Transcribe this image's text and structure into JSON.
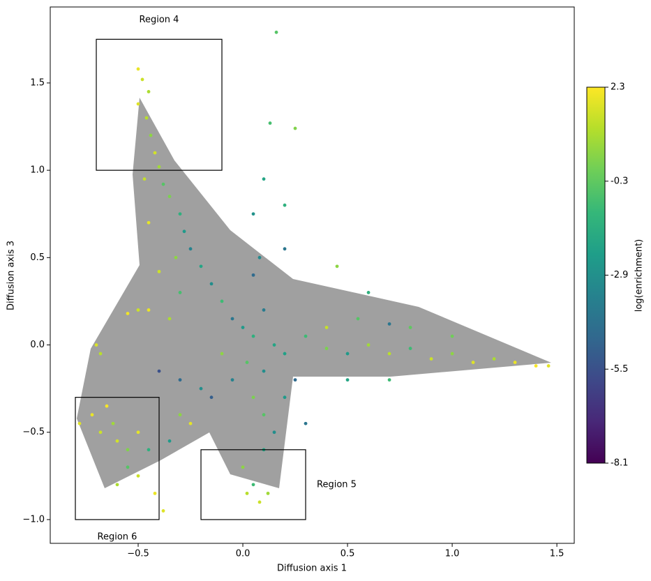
{
  "chart_data": {
    "type": "scatter",
    "x_label": "Diffusion axis 1",
    "y_label": "Diffusion axis 3",
    "xlim": [
      -0.92,
      1.583
    ],
    "ylim": [
      -1.136,
      1.935
    ],
    "xticks": [
      {
        "value": -0.5,
        "label": "−0.5"
      },
      {
        "value": 0,
        "label": "0.0"
      },
      0.5,
      {
        "value": 1,
        "label": "1.0"
      },
      1.5
    ],
    "yticks": [
      {
        "value": -1,
        "label": "−1.0"
      },
      {
        "value": -0.5,
        "label": "−0.5"
      },
      {
        "value": 0,
        "label": "0.0"
      },
      0.5,
      {
        "value": 1,
        "label": "1.0"
      },
      1.5
    ],
    "colormap": "viridis",
    "colorbar": {
      "label": "log(enrichment)",
      "lim": [
        -8.1,
        2.3
      ],
      "ticks": [
        2.3,
        -0.3,
        -2.9,
        -5.5,
        -8.1
      ]
    },
    "regions": [
      {
        "label": "Region 4",
        "x": [
          -0.7,
          -0.1
        ],
        "y": [
          1.0,
          1.75
        ],
        "label_position": "top"
      },
      {
        "label": "Region 5",
        "x": [
          -0.2,
          0.3
        ],
        "y": [
          -1.0,
          -0.6
        ],
        "label_position": "right"
      },
      {
        "label": "Region 6",
        "x": [
          -0.8,
          -0.4
        ],
        "y": [
          -1.0,
          -0.3
        ],
        "label_position": "bottom"
      }
    ],
    "x": [
      -0.5,
      -0.48,
      -0.45,
      -0.5,
      -0.46,
      -0.44,
      -0.42,
      -0.4,
      -0.47,
      -0.38,
      -0.35,
      -0.3,
      -0.28,
      -0.45,
      -0.25,
      -0.2,
      -0.32,
      -0.4,
      -0.15,
      -0.1,
      -0.3,
      -0.45,
      -0.35,
      -0.05,
      0,
      0.05,
      0.1,
      0.15,
      -0.1,
      0.02,
      0.1,
      0.2,
      0.05,
      0.08,
      0.2,
      0.05,
      0.1,
      0.16,
      0.13,
      0.25,
      0.2,
      0.3,
      0.4,
      0.5,
      0.6,
      0.7,
      0.8,
      0.9,
      1.0,
      1.1,
      1.2,
      1.3,
      1.4,
      1.46,
      0.55,
      0.7,
      0.45,
      0.6,
      0.8,
      0.5,
      0.7,
      1.0,
      0.4,
      -0.78,
      -0.72,
      -0.68,
      -0.65,
      -0.62,
      -0.6,
      -0.55,
      -0.5,
      -0.7,
      -0.68,
      -0.55,
      -0.6,
      -0.5,
      -0.42,
      -0.38,
      -0.45,
      -0.35,
      -0.3,
      -0.25,
      -0.3,
      -0.2,
      -0.15,
      -0.4,
      -0.5,
      -0.55,
      0,
      0.02,
      0.05,
      0.08,
      0.12,
      0.1,
      0.15,
      0.1,
      0.2,
      0.05,
      -0.05,
      0.25,
      0.3
    ],
    "y": [
      1.58,
      1.52,
      1.45,
      1.38,
      1.3,
      1.2,
      1.1,
      1.02,
      0.95,
      0.92,
      0.85,
      0.75,
      0.65,
      0.7,
      0.55,
      0.45,
      0.5,
      0.42,
      0.35,
      0.25,
      0.3,
      0.2,
      0.15,
      0.15,
      0.1,
      0.05,
      0.2,
      0.0,
      -0.05,
      -0.1,
      -0.15,
      -0.05,
      0.4,
      0.5,
      0.55,
      0.75,
      0.95,
      1.79,
      1.27,
      1.24,
      0.8,
      0.05,
      -0.02,
      -0.05,
      0.0,
      -0.05,
      -0.02,
      -0.08,
      -0.05,
      -0.1,
      -0.08,
      -0.1,
      -0.12,
      -0.12,
      0.15,
      0.12,
      0.45,
      0.3,
      0.1,
      -0.2,
      -0.2,
      0.05,
      0.1,
      -0.45,
      -0.4,
      -0.5,
      -0.35,
      -0.45,
      -0.55,
      -0.6,
      -0.5,
      0.0,
      -0.05,
      -0.7,
      -0.8,
      -0.75,
      -0.85,
      -0.95,
      -0.6,
      -0.55,
      -0.4,
      -0.45,
      -0.2,
      -0.25,
      -0.3,
      -0.15,
      0.2,
      0.18,
      -0.7,
      -0.85,
      -0.8,
      -0.9,
      -0.85,
      -0.6,
      -0.5,
      -0.4,
      -0.3,
      -0.3,
      -0.2,
      -0.2,
      -0.45
    ],
    "c": [
      2.0,
      1.5,
      1.0,
      1.8,
      1.2,
      0.5,
      1.6,
      0.8,
      1.4,
      -0.5,
      0.2,
      -1.5,
      -2.5,
      1.9,
      -3.5,
      -2.0,
      0.5,
      1.5,
      -3.0,
      -1.0,
      -0.8,
      2.0,
      1.0,
      -4.0,
      -2.5,
      -1.5,
      -3.8,
      -2.0,
      0.5,
      -0.5,
      -3.0,
      -2.2,
      -4.5,
      -3.2,
      -4.0,
      -2.8,
      -2.0,
      -0.5,
      -0.8,
      0.3,
      -1.5,
      -1.0,
      0.2,
      -2.5,
      0.8,
      1.2,
      -1.0,
      1.5,
      0.5,
      1.8,
      1.0,
      2.0,
      2.2,
      1.9,
      -0.5,
      -4.0,
      0.5,
      -1.5,
      -0.3,
      -2.0,
      -1.0,
      0.0,
      1.4,
      1.8,
      2.0,
      1.5,
      2.2,
      0.8,
      1.6,
      0.3,
      1.9,
      1.7,
      1.2,
      -0.5,
      1.0,
      1.5,
      2.0,
      1.8,
      -1.5,
      -2.5,
      0.5,
      1.9,
      -4.5,
      -3.0,
      -5.0,
      -5.5,
      1.5,
      2.1,
      0.5,
      1.2,
      -1.0,
      1.5,
      0.8,
      -2.0,
      -3.0,
      -0.5,
      -2.5,
      0.2,
      -3.5,
      -4.5,
      -4.0
    ]
  }
}
